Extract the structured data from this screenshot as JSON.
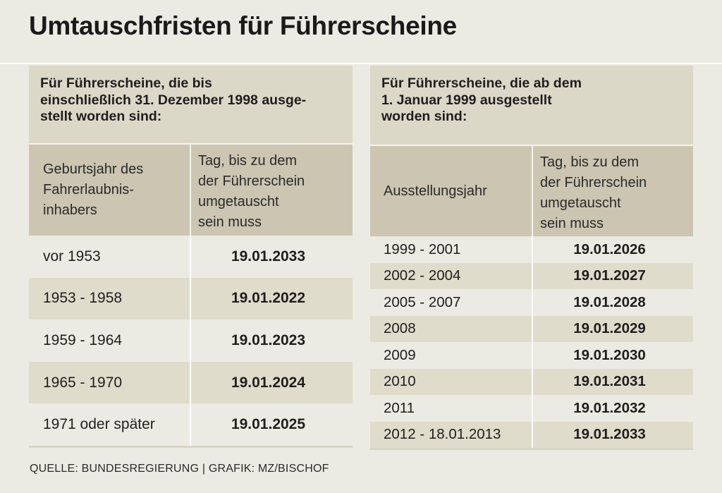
{
  "title": "Umtauschfristen für Führerscheine",
  "left_table": {
    "heading": "Für Führerscheine, die bis\neinschließlich 31. Dezember 1998 ausge-\nstellt worden sind:",
    "col1_header": "Geburtsjahr des\nFahrerlaubnis-\ninhabers",
    "col2_header": "Tag, bis zu dem\nder Führerschein\numgetauscht\nsein muss",
    "rows": [
      {
        "label": "vor 1953",
        "date": "19.01.2033"
      },
      {
        "label": "1953 - 1958",
        "date": "19.01.2022"
      },
      {
        "label": "1959 - 1964",
        "date": "19.01.2023"
      },
      {
        "label": "1965 - 1970",
        "date": "19.01.2024"
      },
      {
        "label": "1971 oder später",
        "date": "19.01.2025"
      }
    ]
  },
  "right_table": {
    "heading": "Für Führerscheine, die ab dem\n1. Januar 1999 ausgestellt\nworden sind:",
    "col1_header": "Ausstellungsjahr",
    "col2_header": "Tag, bis zu dem\nder Führerschein\numgetauscht\nsein muss",
    "rows": [
      {
        "label": "1999 - 2001",
        "date": "19.01.2026"
      },
      {
        "label": "2002 - 2004",
        "date": "19.01.2027"
      },
      {
        "label": "2005 - 2007",
        "date": "19.01.2028"
      },
      {
        "label": "2008",
        "date": "19.01.2029"
      },
      {
        "label": "2009",
        "date": "19.01.2030"
      },
      {
        "label": "2010",
        "date": "19.01.2031"
      },
      {
        "label": "2011",
        "date": "19.01.2032"
      },
      {
        "label": "2012 - 18.01.2013",
        "date": "19.01.2033"
      }
    ]
  },
  "source": "QUELLE: BUNDESREGIERUNG | GRAFIK: MZ/BISCHOF"
}
